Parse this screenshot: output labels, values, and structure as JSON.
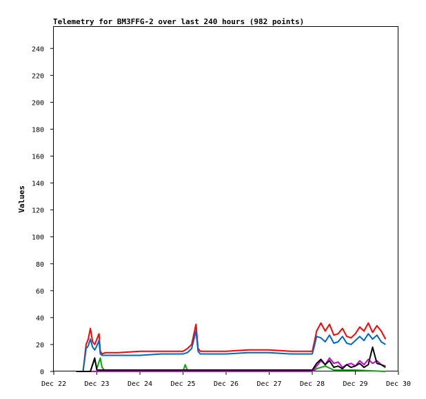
{
  "chart_data": {
    "type": "line",
    "title": "Telemetry for BM3FFG-2 over last 240 hours (982 points)",
    "xlabel": "",
    "ylabel": "Values",
    "x_ticks": [
      "Dec 22",
      "Dec 23",
      "Dec 24",
      "Dec 25",
      "Dec 26",
      "Dec 27",
      "Dec 28",
      "Dec 29",
      "Dec 30"
    ],
    "xlim": [
      "Dec 22",
      "Dec 30"
    ],
    "y_ticks": [
      0,
      20,
      40,
      60,
      80,
      100,
      120,
      140,
      160,
      180,
      200,
      220,
      240
    ],
    "ylim": [
      0,
      256
    ],
    "grid": false,
    "legend": "none",
    "colors": {
      "red": "#ff0000",
      "blue": "#0066cc",
      "green": "#00aa00",
      "magenta": "#cc00cc",
      "black": "#000000"
    },
    "series": [
      {
        "color": "red",
        "x_days": [
          0.52,
          0.68,
          0.75,
          0.8,
          0.85,
          0.9,
          0.95,
          1.0,
          1.05,
          1.08,
          1.12,
          1.2,
          1.5,
          2.0,
          2.5,
          3.0,
          3.1,
          3.2,
          3.3,
          3.35,
          3.4,
          3.5,
          4.0,
          4.5,
          5.0,
          5.5,
          5.9,
          6.0,
          6.05,
          6.1,
          6.2,
          6.3,
          6.4,
          6.5,
          6.6,
          6.7,
          6.8,
          6.9,
          7.0,
          7.1,
          7.2,
          7.3,
          7.4,
          7.5,
          7.6,
          7.7
        ],
        "y": [
          0,
          0,
          20,
          24,
          32,
          22,
          20,
          24,
          28,
          15,
          13,
          14,
          14,
          15,
          15,
          15,
          17,
          20,
          35,
          17,
          15,
          15,
          15,
          16,
          16,
          15,
          15,
          15,
          22,
          30,
          36,
          30,
          35,
          27,
          28,
          32,
          26,
          25,
          28,
          33,
          30,
          36,
          29,
          34,
          30,
          24
        ]
      },
      {
        "color": "blue",
        "x_days": [
          0.52,
          0.68,
          0.75,
          0.8,
          0.85,
          0.9,
          0.95,
          1.0,
          1.05,
          1.08,
          1.12,
          1.2,
          1.5,
          2.0,
          2.5,
          3.0,
          3.1,
          3.2,
          3.3,
          3.35,
          3.4,
          3.5,
          4.0,
          4.5,
          5.0,
          5.5,
          5.9,
          6.0,
          6.05,
          6.1,
          6.2,
          6.3,
          6.4,
          6.5,
          6.6,
          6.7,
          6.8,
          6.9,
          7.0,
          7.1,
          7.2,
          7.3,
          7.4,
          7.5,
          7.6,
          7.7
        ],
        "y": [
          0,
          0,
          17,
          19,
          24,
          18,
          16,
          19,
          23,
          13,
          12,
          12,
          12,
          12,
          13,
          13,
          14,
          17,
          30,
          15,
          13,
          13,
          13,
          14,
          14,
          13,
          13,
          13,
          19,
          26,
          25,
          22,
          27,
          21,
          22,
          26,
          21,
          20,
          23,
          26,
          23,
          28,
          24,
          27,
          22,
          20
        ]
      },
      {
        "color": "green",
        "x_days": [
          0.52,
          0.85,
          0.9,
          0.95,
          1.0,
          1.05,
          1.08,
          1.12,
          1.2,
          3.0,
          3.05,
          3.1,
          3.15,
          3.2,
          4.0,
          5.0,
          6.0,
          6.1,
          6.3,
          6.5,
          7.0,
          7.7
        ],
        "y": [
          0,
          0,
          5,
          9,
          2,
          7,
          10,
          3,
          0,
          0,
          5,
          1,
          0,
          0,
          0,
          0,
          0,
          2,
          4,
          1,
          1,
          0
        ]
      },
      {
        "color": "magenta",
        "x_days": [
          0.52,
          6.0,
          6.1,
          6.2,
          6.3,
          6.4,
          6.5,
          6.6,
          6.7,
          6.8,
          6.9,
          7.0,
          7.1,
          7.2,
          7.3,
          7.4,
          7.5,
          7.6,
          7.7
        ],
        "y": [
          0,
          0,
          4,
          8,
          5,
          10,
          6,
          7,
          3,
          5,
          6,
          4,
          8,
          5,
          9,
          6,
          8,
          5,
          4
        ]
      },
      {
        "color": "black",
        "x_days": [
          0.52,
          0.85,
          0.9,
          0.95,
          1.0,
          1.1,
          1.5,
          2.0,
          3.0,
          4.0,
          5.0,
          6.0,
          6.1,
          6.2,
          6.3,
          6.4,
          6.5,
          6.6,
          6.7,
          6.8,
          6.9,
          7.0,
          7.1,
          7.2,
          7.3,
          7.4,
          7.5,
          7.6,
          7.7
        ],
        "y": [
          0,
          0,
          5,
          10,
          1,
          1,
          1,
          1,
          1,
          1,
          1,
          1,
          6,
          9,
          5,
          8,
          3,
          4,
          2,
          5,
          3,
          4,
          6,
          3,
          5,
          18,
          6,
          5,
          3
        ]
      }
    ]
  }
}
